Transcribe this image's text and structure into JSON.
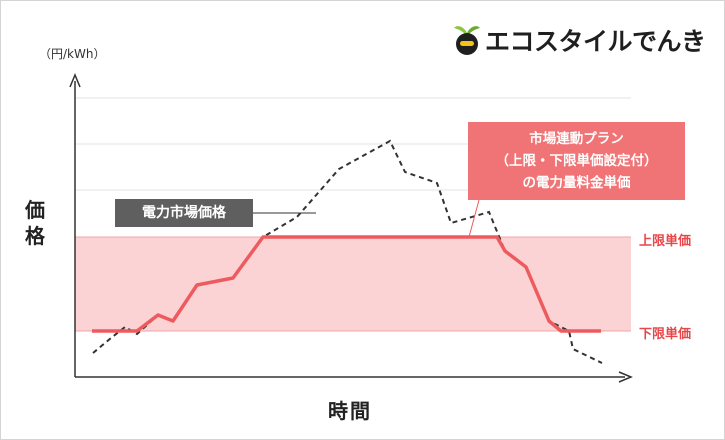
{
  "brand": {
    "name": "エコスタイルでんき"
  },
  "chart_data": {
    "type": "line",
    "unit_label": "（円/kWh）",
    "ylabel": "価格",
    "xlabel": "時間",
    "band": {
      "upper_label": "上限単価",
      "lower_label": "下限単価",
      "fill_color": "#fcd3d4"
    },
    "market_label": "電力市場価格",
    "plan_label_lines": [
      "市場連動プラン",
      "（上限・下限単価設定付）",
      "の電力量料金単価"
    ],
    "colors": {
      "market": "#333333",
      "plan": "#ee5b5e",
      "label_box_dark": "#5f5f5f",
      "label_box_red": "#f07375"
    }
  }
}
